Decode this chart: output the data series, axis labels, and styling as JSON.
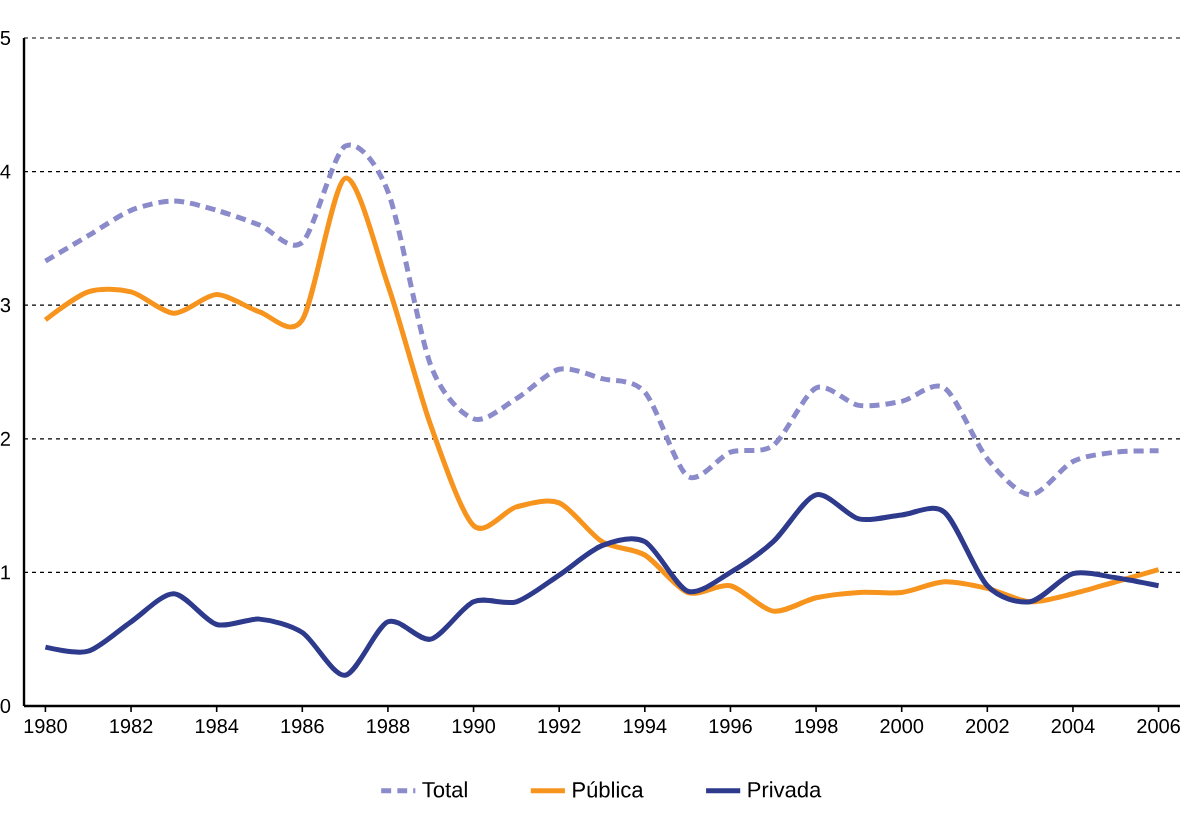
{
  "chart_data": {
    "type": "line",
    "x": [
      1980,
      1981,
      1982,
      1983,
      1984,
      1985,
      1986,
      1987,
      1988,
      1989,
      1990,
      1991,
      1992,
      1993,
      1994,
      1995,
      1996,
      1997,
      1998,
      1999,
      2000,
      2001,
      2002,
      2003,
      2004,
      2005,
      2006
    ],
    "series": [
      {
        "name": "Total",
        "color": "#8b8bcb",
        "line_style": "dashed",
        "values": [
          3.33,
          3.52,
          3.71,
          3.78,
          3.71,
          3.6,
          3.47,
          4.19,
          3.85,
          2.55,
          2.15,
          2.3,
          2.52,
          2.45,
          2.35,
          1.72,
          1.9,
          1.95,
          2.38,
          2.25,
          2.28,
          2.38,
          1.85,
          1.58,
          1.83,
          1.9,
          1.91
        ]
      },
      {
        "name": "Pública",
        "color": "#f7941d",
        "line_style": "solid",
        "values": [
          2.89,
          3.1,
          3.1,
          2.94,
          3.08,
          2.95,
          2.89,
          3.95,
          3.15,
          2.1,
          1.35,
          1.49,
          1.52,
          1.23,
          1.13,
          0.85,
          0.9,
          0.71,
          0.81,
          0.85,
          0.85,
          0.93,
          0.88,
          0.78,
          0.84,
          0.93,
          1.02
        ]
      },
      {
        "name": "Privada",
        "color": "#2e3a8c",
        "line_style": "solid",
        "values": [
          0.44,
          0.41,
          0.63,
          0.84,
          0.61,
          0.65,
          0.55,
          0.23,
          0.63,
          0.5,
          0.78,
          0.78,
          0.98,
          1.2,
          1.23,
          0.86,
          1.0,
          1.23,
          1.58,
          1.4,
          1.43,
          1.45,
          0.9,
          0.78,
          0.99,
          0.96,
          0.9
        ]
      }
    ],
    "xlim": [
      1979.5,
      2006.5
    ],
    "xticks": [
      1980,
      1982,
      1984,
      1986,
      1988,
      1990,
      1992,
      1994,
      1996,
      1998,
      2000,
      2002,
      2004,
      2006
    ],
    "ylim": [
      0,
      5
    ],
    "yticks": [
      0,
      1,
      2,
      3,
      4,
      5
    ],
    "grid": "y",
    "legend": "bottom",
    "marker": "none"
  }
}
